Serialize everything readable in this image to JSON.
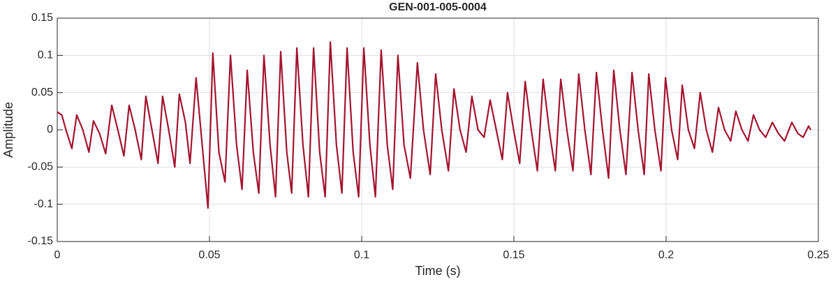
{
  "chart_data": {
    "type": "line",
    "title": "GEN-001-005-0004",
    "xlabel": "Time (s)",
    "ylabel": "Amplitude",
    "x": [
      0,
      0.0015,
      0.003,
      0.0048,
      0.0064,
      0.0084,
      0.0104,
      0.0119,
      0.0139,
      0.0159,
      0.0179,
      0.0199,
      0.0219,
      0.0236,
      0.0256,
      0.0276,
      0.0291,
      0.0311,
      0.0331,
      0.0346,
      0.0366,
      0.0386,
      0.0401,
      0.0421,
      0.0436,
      0.0456,
      0.0476,
      0.0495,
      0.0511,
      0.0531,
      0.0551,
      0.0569,
      0.0589,
      0.0607,
      0.0624,
      0.0644,
      0.0662,
      0.0679,
      0.0699,
      0.0717,
      0.0734,
      0.0754,
      0.077,
      0.0787,
      0.0807,
      0.0825,
      0.0842,
      0.0862,
      0.088,
      0.0897,
      0.0917,
      0.0935,
      0.0952,
      0.0972,
      0.099,
      0.1007,
      0.1027,
      0.1045,
      0.1064,
      0.1084,
      0.1102,
      0.1119,
      0.1139,
      0.116,
      0.1183,
      0.1203,
      0.1225,
      0.1243,
      0.1263,
      0.1285,
      0.1303,
      0.1323,
      0.1343,
      0.1362,
      0.1382,
      0.1402,
      0.1422,
      0.1442,
      0.1462,
      0.1479,
      0.1499,
      0.1519,
      0.1537,
      0.1557,
      0.1577,
      0.1596,
      0.1616,
      0.1636,
      0.1654,
      0.1674,
      0.1694,
      0.1713,
      0.1733,
      0.1753,
      0.1771,
      0.1791,
      0.1811,
      0.1828,
      0.1848,
      0.1868,
      0.1888,
      0.1908,
      0.1928,
      0.1943,
      0.1963,
      0.1983,
      0.1998,
      0.2018,
      0.2038,
      0.2053,
      0.2073,
      0.2093,
      0.2112,
      0.2132,
      0.2152,
      0.2172,
      0.2192,
      0.2212,
      0.2229,
      0.2249,
      0.2269,
      0.2287,
      0.2307,
      0.2327,
      0.2349,
      0.2369,
      0.2389,
      0.2413,
      0.2433,
      0.245,
      0.2468,
      0.2475
    ],
    "series": [
      {
        "color": "#a2142f",
        "values": [
          0.024,
          0.02,
          -0.002,
          -0.025,
          0.02,
          0,
          -0.03,
          0.012,
          -0.005,
          -0.032,
          0.033,
          0,
          -0.035,
          0.033,
          0,
          -0.04,
          0.045,
          0,
          -0.045,
          0.045,
          0,
          -0.05,
          0.048,
          0.01,
          -0.045,
          0.07,
          -0.02,
          -0.105,
          0.103,
          -0.03,
          -0.07,
          0.1,
          -0.02,
          -0.08,
          0.08,
          -0.03,
          -0.085,
          0.1,
          -0.02,
          -0.09,
          0.105,
          -0.03,
          -0.085,
          0.11,
          -0.02,
          -0.09,
          0.11,
          -0.03,
          -0.09,
          0.118,
          -0.02,
          -0.085,
          0.11,
          -0.03,
          -0.09,
          0.11,
          -0.02,
          -0.09,
          0.107,
          -0.02,
          -0.08,
          0.1,
          -0.02,
          -0.065,
          0.09,
          0,
          -0.06,
          0.075,
          0,
          -0.055,
          0.055,
          0,
          -0.03,
          0.045,
          0,
          -0.01,
          0.04,
          0,
          -0.04,
          0.05,
          0,
          -0.045,
          0.065,
          0,
          -0.055,
          0.068,
          0,
          -0.055,
          0.068,
          0,
          -0.055,
          0.075,
          0,
          -0.06,
          0.077,
          0,
          -0.065,
          0.08,
          0,
          -0.06,
          0.077,
          0,
          -0.06,
          0.075,
          0,
          -0.055,
          0.07,
          0,
          -0.04,
          0.06,
          0,
          -0.025,
          0.05,
          0,
          -0.03,
          0.03,
          0,
          -0.015,
          0.025,
          0,
          -0.015,
          0.02,
          0,
          -0.01,
          0.01,
          -0.005,
          -0.015,
          0.01,
          -0.005,
          -0.01,
          0.005,
          0
        ]
      }
    ],
    "xlim": [
      0,
      0.25
    ],
    "xticks": [
      0,
      0.05,
      0.1,
      0.15,
      0.2,
      0.25
    ],
    "ylim": [
      -0.15,
      0.15
    ],
    "yticks": [
      -0.15,
      -0.1,
      -0.05,
      0,
      0.05,
      0.1,
      0.15
    ],
    "grid": true
  }
}
